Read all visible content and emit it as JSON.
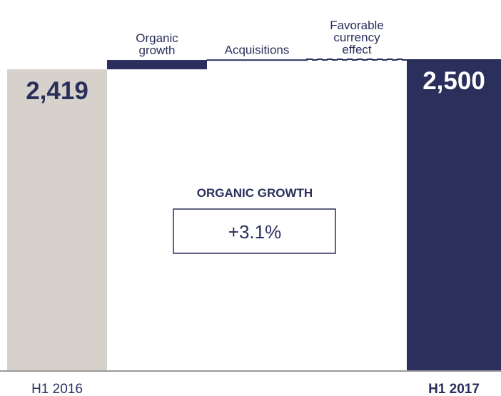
{
  "chart_data": {
    "type": "waterfall",
    "categories": [
      "H1 2016",
      "Organic\ngrowth",
      "Acquisitions",
      "Favorable\ncurrency\neffect",
      "H1 2017"
    ],
    "values": [
      2419,
      75,
      2,
      4,
      2500
    ],
    "value_labels": [
      "2,419",
      null,
      null,
      null,
      "2,500"
    ],
    "measure": [
      "absolute",
      "relative",
      "relative",
      "relative",
      "total"
    ],
    "colors": [
      "#d6d2cb",
      "#2a2f5b",
      "#ffffff",
      "#ffffff",
      "#2a2f5b"
    ],
    "dashed": [
      false,
      false,
      false,
      true,
      false
    ],
    "annotation": {
      "title": "ORGANIC GROWTH",
      "value": "+3.1%"
    }
  }
}
